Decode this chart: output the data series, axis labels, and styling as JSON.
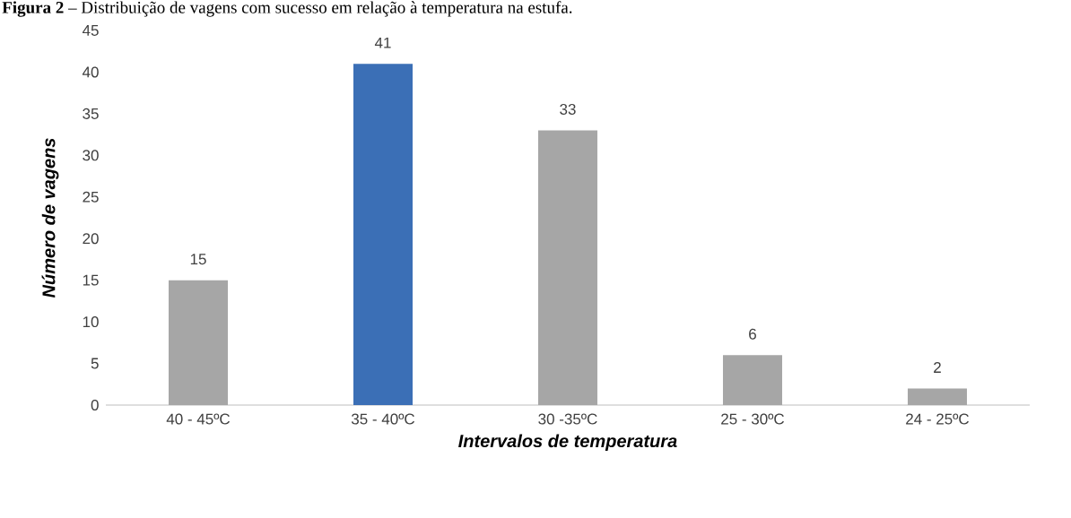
{
  "chart_data": {
    "type": "bar",
    "title": "**Figura 2** – Distribuição de vagens com sucesso em relação à temperatura na estufa.",
    "xlabel": "Intervalos de temperatura",
    "ylabel": "Número de vagens",
    "categories": [
      "40 - 45ºC",
      "35 - 40ºC",
      "30 -35ºC",
      "25 - 30ºC",
      "24 - 25ºC"
    ],
    "values": [
      15,
      41,
      33,
      6,
      2
    ],
    "colors": [
      "#a6a6a6",
      "#3b6fb6",
      "#a6a6a6",
      "#a6a6a6",
      "#a6a6a6"
    ],
    "ylim": [
      0,
      45
    ],
    "yticks": [
      0,
      5,
      10,
      15,
      20,
      25,
      30,
      35,
      40,
      45
    ],
    "grid": false,
    "data_labels": true
  }
}
